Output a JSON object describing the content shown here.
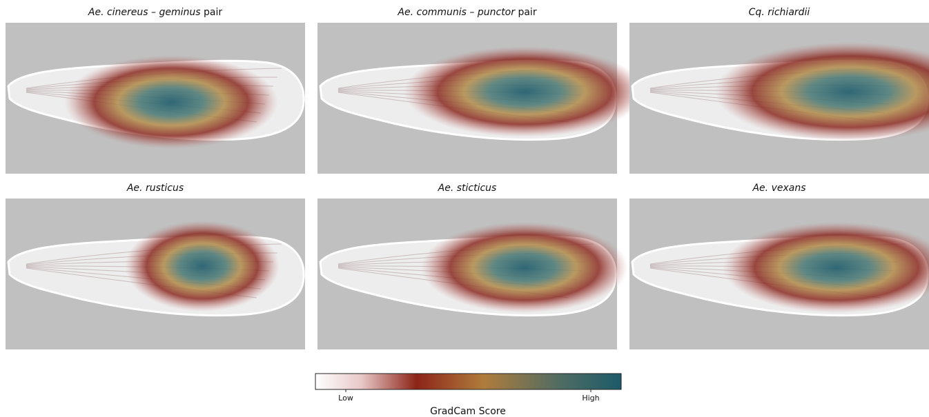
{
  "panels": [
    {
      "title": [
        {
          "text": "Ae. cinereus – geminus",
          "italic": true
        },
        {
          "text": " pair",
          "italic": false
        }
      ]
    },
    {
      "title": [
        {
          "text": "Ae. communis – punctor",
          "italic": true
        },
        {
          "text": " pair",
          "italic": false
        }
      ]
    },
    {
      "title": [
        {
          "text": "Cq. richiardii",
          "italic": true
        }
      ]
    },
    {
      "title": [
        {
          "text": "Ae. rusticus",
          "italic": true
        }
      ]
    },
    {
      "title": [
        {
          "text": "Ae. sticticus",
          "italic": true
        }
      ]
    },
    {
      "title": [
        {
          "text": "Ae. vexans",
          "italic": true
        }
      ]
    }
  ],
  "colorbar": {
    "label": "GradCam Score",
    "low_label": "Low",
    "high_label": "High"
  }
}
